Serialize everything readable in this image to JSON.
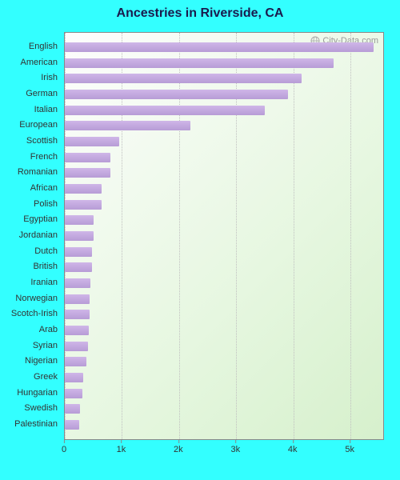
{
  "title": "Ancestries in Riverside, CA",
  "watermark": "City-Data.com",
  "chart": {
    "type": "bar-horizontal",
    "bar_color": "#b79cd6",
    "bar_gradient_top": "#cfb6e8",
    "background_gradient": [
      "#fdfdfd",
      "#e6f7e0",
      "#d6f0cc"
    ],
    "page_background": "#33ffff",
    "grid_color": "#c0c0c0",
    "border_color": "#888888",
    "title_color": "#1a1a4d",
    "title_fontsize": 16,
    "label_fontsize": 11,
    "xlim": [
      0,
      5600
    ],
    "xticks": [
      0,
      1000,
      2000,
      3000,
      4000,
      5000
    ],
    "xtick_labels": [
      "0",
      "1k",
      "2k",
      "3k",
      "4k",
      "5k"
    ],
    "categories": [
      "English",
      "American",
      "Irish",
      "German",
      "Italian",
      "European",
      "Scottish",
      "French",
      "Romanian",
      "African",
      "Polish",
      "Egyptian",
      "Jordanian",
      "Dutch",
      "British",
      "Iranian",
      "Norwegian",
      "Scotch-Irish",
      "Arab",
      "Syrian",
      "Nigerian",
      "Greek",
      "Hungarian",
      "Swedish",
      "Palestinian"
    ],
    "values": [
      5400,
      4700,
      4150,
      3900,
      3500,
      2200,
      950,
      800,
      800,
      650,
      650,
      500,
      500,
      480,
      470,
      450,
      440,
      430,
      420,
      400,
      380,
      320,
      310,
      260,
      250
    ]
  }
}
